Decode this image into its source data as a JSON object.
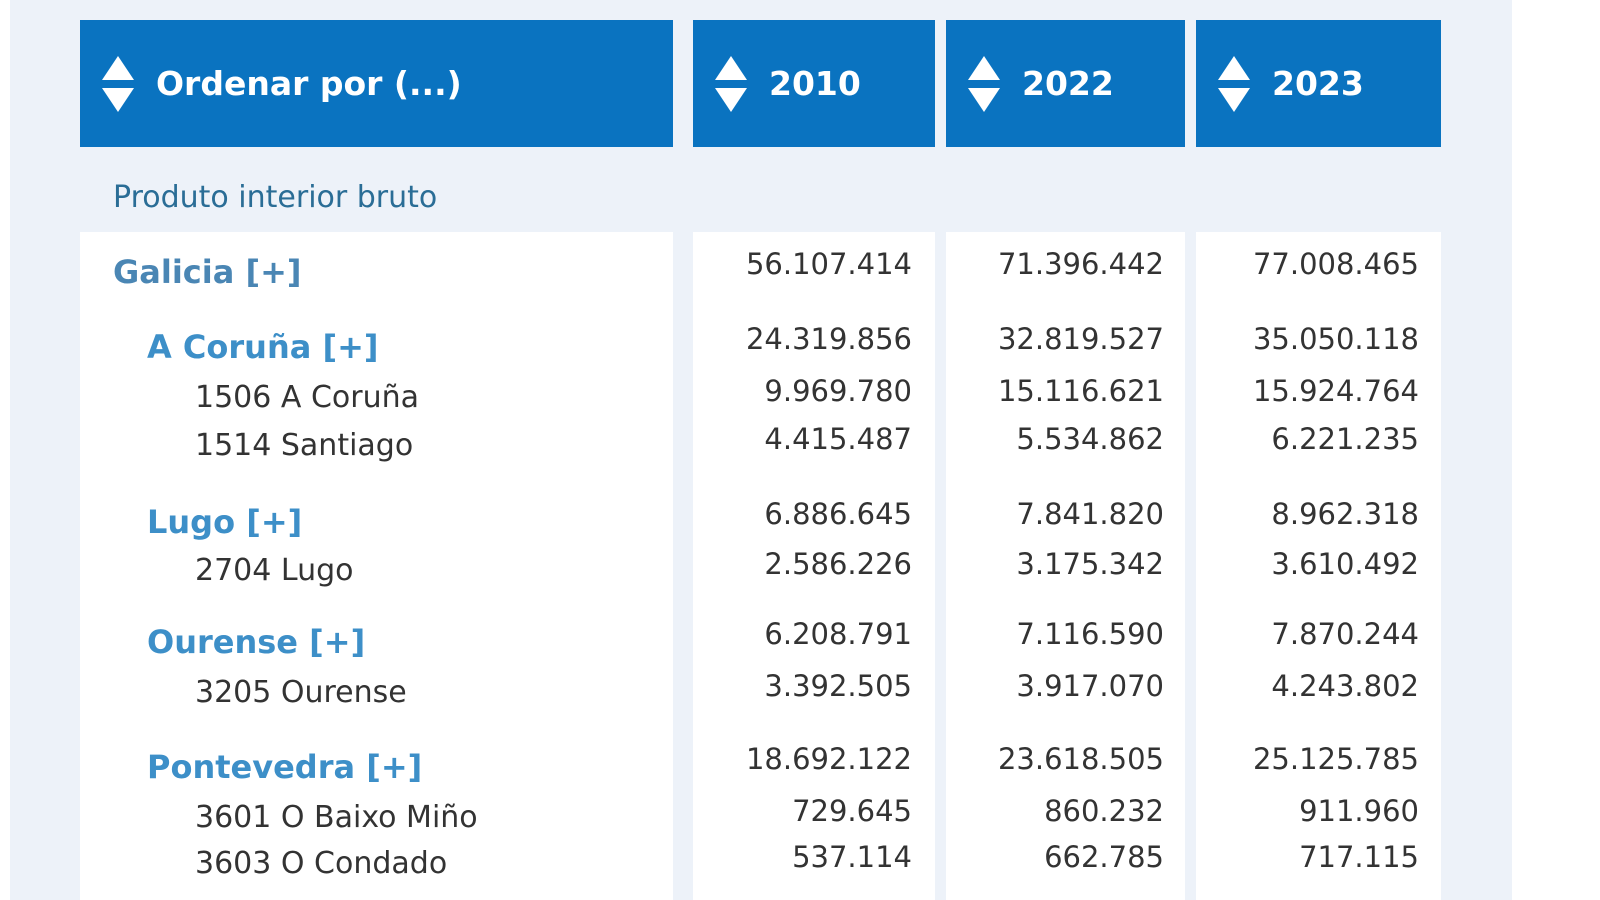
{
  "headers": [
    {
      "label": "Ordenar por (...)",
      "icon": "sort-icon"
    },
    {
      "label": "2010",
      "icon": "sort-icon"
    },
    {
      "label": "2022",
      "icon": "sort-icon"
    },
    {
      "label": "2023",
      "icon": "sort-icon"
    }
  ],
  "section": "Produto interior bruto",
  "rows": [
    {
      "label": "Galicia [+]",
      "level": 0,
      "values": [
        "56.107.414",
        "71.396.442",
        "77.008.465"
      ]
    },
    {
      "label": "A Coruña [+]",
      "level": 1,
      "values": [
        "24.319.856",
        "32.819.527",
        "35.050.118"
      ]
    },
    {
      "label": "1506 A Coruña",
      "level": 2,
      "values": [
        "9.969.780",
        "15.116.621",
        "15.924.764"
      ]
    },
    {
      "label": "1514 Santiago",
      "level": 2,
      "values": [
        "4.415.487",
        "5.534.862",
        "6.221.235"
      ]
    },
    {
      "label": "Lugo [+]",
      "level": 1,
      "values": [
        "6.886.645",
        "7.841.820",
        "8.962.318"
      ]
    },
    {
      "label": "2704 Lugo",
      "level": 2,
      "values": [
        "2.586.226",
        "3.175.342",
        "3.610.492"
      ]
    },
    {
      "label": "Ourense [+]",
      "level": 1,
      "values": [
        "6.208.791",
        "7.116.590",
        "7.870.244"
      ]
    },
    {
      "label": "3205 Ourense",
      "level": 2,
      "values": [
        "3.392.505",
        "3.917.070",
        "4.243.802"
      ]
    },
    {
      "label": "Pontevedra [+]",
      "level": 1,
      "values": [
        "18.692.122",
        "23.618.505",
        "25.125.785"
      ]
    },
    {
      "label": "3601 O Baixo Miño",
      "level": 2,
      "values": [
        "729.645",
        "860.232",
        "911.960"
      ]
    },
    {
      "label": "3603 O Condado",
      "level": 2,
      "values": [
        "537.114",
        "662.785",
        "717.115"
      ]
    }
  ]
}
